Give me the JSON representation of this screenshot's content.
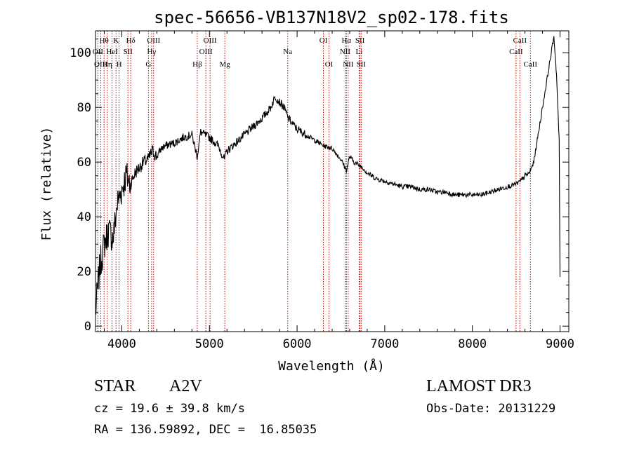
{
  "chart_data": {
    "type": "line",
    "title": "spec-56656-VB137N18V2_sp02-178.fits",
    "xlabel": "Wavelength (Å)",
    "ylabel": "Flux (relative)",
    "xlim": [
      3700,
      9100
    ],
    "ylim": [
      -2,
      108
    ],
    "xticks": [
      4000,
      5000,
      6000,
      7000,
      8000,
      9000
    ],
    "yticks": [
      0,
      20,
      40,
      60,
      80,
      100
    ],
    "grid": false,
    "line_color": "#000000",
    "marker_color": "#cc0000",
    "series": [
      {
        "x": [
          3700,
          3750,
          3800,
          3850,
          3900,
          3950,
          4000,
          4050,
          4100,
          4150,
          4200,
          4250,
          4300,
          4350,
          4400,
          4450,
          4500,
          4600,
          4700,
          4800,
          4861,
          4900,
          5000,
          5100,
          5170,
          5200,
          5300,
          5400,
          5500,
          5600,
          5700,
          5750,
          5800,
          5850,
          5900,
          5950,
          6000,
          6100,
          6200,
          6300,
          6400,
          6500,
          6563,
          6600,
          6650,
          6700,
          6750,
          6800,
          6900,
          7000,
          7100,
          7200,
          7300,
          7400,
          7500,
          7600,
          7700,
          7800,
          7900,
          8000,
          8100,
          8200,
          8300,
          8400,
          8500,
          8550,
          8600,
          8650,
          8700,
          8750,
          8800,
          8850,
          8900,
          8930,
          8960,
          8990,
          9000
        ],
        "y": [
          5,
          22,
          30,
          35,
          32,
          45,
          50,
          55,
          52,
          56,
          58,
          60,
          61,
          64,
          62,
          65,
          66,
          67,
          69,
          70,
          62,
          71,
          69,
          66,
          61,
          64,
          67,
          70,
          73,
          76,
          80,
          84,
          82,
          80,
          76,
          74,
          72,
          70,
          68,
          66,
          65,
          61,
          57,
          62,
          60,
          59,
          58,
          56,
          54,
          53,
          52,
          51,
          51,
          50,
          50,
          49,
          49,
          48,
          48,
          48,
          48,
          49,
          50,
          51,
          52,
          53,
          55,
          56,
          60,
          70,
          80,
          90,
          100,
          106,
          92,
          68,
          18
        ]
      }
    ],
    "lines": [
      {
        "label": "Hθ",
        "x": 3798,
        "row": 0
      },
      {
        "label": "OII",
        "x": 3727,
        "row": 1
      },
      {
        "label": "OIII",
        "x": 3760,
        "row": 2
      },
      {
        "label": "Hη",
        "x": 3835,
        "row": 2
      },
      {
        "label": "K",
        "x": 3934,
        "row": 0
      },
      {
        "label": "HeI",
        "x": 3889,
        "row": 1
      },
      {
        "label": "H",
        "x": 3969,
        "row": 2
      },
      {
        "label": "SII",
        "x": 4070,
        "row": 1
      },
      {
        "label": "Hδ",
        "x": 4102,
        "row": 0
      },
      {
        "label": "OIII",
        "x": 4363,
        "row": 0
      },
      {
        "label": "Hγ",
        "x": 4340,
        "row": 1
      },
      {
        "label": "G",
        "x": 4304,
        "row": 2
      },
      {
        "label": "Hβ",
        "x": 4861,
        "row": 2
      },
      {
        "label": "OIII",
        "x": 5007,
        "row": 0
      },
      {
        "label": "OIII",
        "x": 4959,
        "row": 1
      },
      {
        "label": "Mg",
        "x": 5175,
        "row": 2
      },
      {
        "label": "Na",
        "x": 5893,
        "row": 1
      },
      {
        "label": "OI",
        "x": 6300,
        "row": 0
      },
      {
        "label": "OI",
        "x": 6364,
        "row": 2
      },
      {
        "label": "Hα",
        "x": 6563,
        "row": 0
      },
      {
        "label": "NII",
        "x": 6548,
        "row": 1
      },
      {
        "label": "NII",
        "x": 6583,
        "row": 2
      },
      {
        "label": "SII",
        "x": 6717,
        "row": 0
      },
      {
        "label": "Li",
        "x": 6708,
        "row": 1
      },
      {
        "label": "SII",
        "x": 6731,
        "row": 2
      },
      {
        "label": "CaII",
        "x": 8542,
        "row": 0
      },
      {
        "label": "CaII",
        "x": 8498,
        "row": 1
      },
      {
        "label": "CaII",
        "x": 8662,
        "row": 2
      }
    ]
  },
  "info": {
    "object_class": "STAR",
    "subclass": "A2V",
    "survey": "LAMOST DR3",
    "cz": "cz = 19.6 ± 39.8 km/s",
    "obs_date": "Obs-Date: 20131229",
    "coords": "RA = 136.59892, DEC =  16.85035"
  }
}
